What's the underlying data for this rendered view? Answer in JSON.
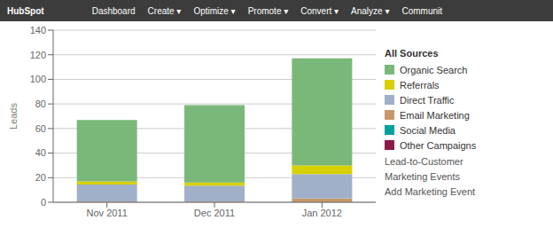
{
  "chart_data": {
    "type": "bar",
    "stacked": true,
    "categories": [
      "Nov 2011",
      "Dec 2011",
      "Jan 2012"
    ],
    "series": [
      {
        "name": "Organic Search",
        "color": "#7ab87a",
        "values": [
          50,
          63,
          87
        ]
      },
      {
        "name": "Referrals",
        "color": "#d8d000",
        "values": [
          2.5,
          2.5,
          7
        ]
      },
      {
        "name": "Direct Traffic",
        "color": "#9fb0c8",
        "values": [
          14,
          13,
          20
        ]
      },
      {
        "name": "Email Marketing",
        "color": "#c8986a",
        "values": [
          0.5,
          0.5,
          3
        ]
      },
      {
        "name": "Social Media",
        "color": "#00a0a0",
        "values": [
          0,
          0,
          0
        ]
      },
      {
        "name": "Other Campaigns",
        "color": "#8b1a4a",
        "values": [
          0,
          0,
          0
        ]
      }
    ],
    "ylabel": "Leads",
    "ylim": [
      0,
      140
    ],
    "yticks": [
      0,
      20,
      40,
      60,
      80,
      100,
      120,
      140
    ],
    "grid": true,
    "legend": "right",
    "annotations": [
      "HubSpot",
      "Dashboard",
      "Create ▾",
      "Optimize ▾",
      "Promote ▾",
      "Convert ▾",
      "Analyze ▾",
      "Communit",
      "All Sources",
      "Lead-to-Customer",
      "Marketing Events",
      "Add Marketing Event"
    ]
  }
}
